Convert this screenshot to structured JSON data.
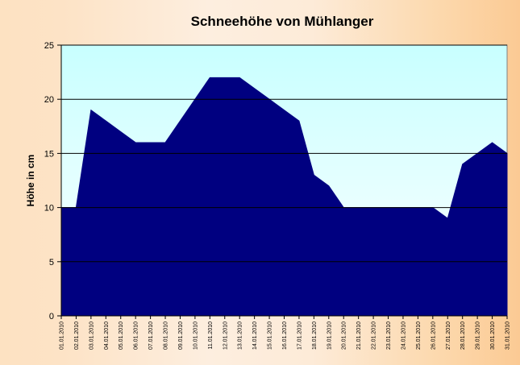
{
  "chart_data": {
    "type": "area",
    "title": "Schneehöhe von Mühlanger",
    "ylabel": "Höhe in cm",
    "xlabel": "",
    "ylim": [
      0,
      25
    ],
    "yticks": [
      0,
      5,
      10,
      15,
      20,
      25
    ],
    "grid": true,
    "legend": "none",
    "colors": {
      "area": "#000080",
      "plot_top": "#c8ffff",
      "plot_bottom": "#ffffff",
      "grid": "#000000"
    },
    "x": [
      "01.01.2010",
      "02.01.2010",
      "03.01.2010",
      "04.01.2010",
      "05.01.2010",
      "06.01.2010",
      "07.01.2010",
      "08.01.2010",
      "09.01.2010",
      "10.01.2010",
      "11.01.2010",
      "12.01.2010",
      "13.01.2010",
      "14.01.2010",
      "15.01.2010",
      "16.01.2010",
      "17.01.2010",
      "18.01.2010",
      "19.01.2010",
      "20.01.2010",
      "21.01.2010",
      "22.01.2010",
      "23.01.2010",
      "24.01.2010",
      "25.01.2010",
      "26.01.2010",
      "27.01.2010",
      "28.01.2010",
      "29.01.2010",
      "30.01.2010",
      "31.01.2010"
    ],
    "series": [
      {
        "values": [
          10,
          10,
          19,
          18,
          17,
          16,
          16,
          16,
          18,
          20,
          22,
          22,
          22,
          21,
          20,
          19,
          18,
          13,
          12,
          10,
          10,
          10,
          10,
          10,
          10,
          10,
          9,
          14,
          15,
          16,
          15
        ]
      }
    ]
  }
}
